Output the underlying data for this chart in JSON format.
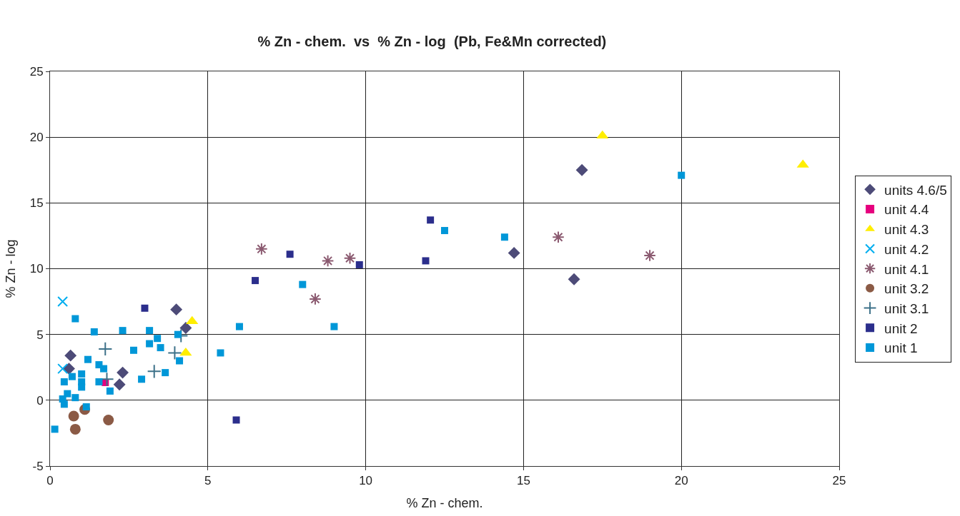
{
  "chart_data": {
    "type": "scatter",
    "title": "% Zn - chem.  vs  % Zn - log  (Pb, Fe&Mn corrected)",
    "xlabel": "% Zn - chem.",
    "ylabel": "% Zn - log",
    "xlim": [
      0,
      25
    ],
    "xticks": [
      0,
      5,
      10,
      15,
      20,
      25
    ],
    "ylim": [
      -5,
      25
    ],
    "yticks": [
      -5,
      0,
      5,
      10,
      15,
      20,
      25
    ],
    "grid": true,
    "legend": "right",
    "series": [
      {
        "name": "units 4.6/5",
        "color": "#4d4b78",
        "marker": "diamond",
        "x": [
          0.65,
          0.6,
          2.2,
          2.3,
          4.0,
          4.3,
          16.85,
          14.7,
          16.6
        ],
        "values": [
          3.4,
          2.4,
          1.2,
          2.1,
          6.9,
          5.5,
          17.5,
          11.2,
          9.2
        ]
      },
      {
        "name": "unit 4.4",
        "color": "#e6007e",
        "marker": "square",
        "x": [
          1.75
        ],
        "values": [
          1.35
        ]
      },
      {
        "name": "unit 4.3",
        "color": "#ffee00",
        "marker": "triangle",
        "x": [
          17.5,
          23.85,
          4.5,
          4.3
        ],
        "values": [
          20.1,
          17.9,
          6.0,
          3.6
        ]
      },
      {
        "name": "unit 4.2",
        "color": "#00aeef",
        "marker": "x",
        "x": [
          0.4,
          0.4
        ],
        "values": [
          7.5,
          2.4
        ]
      },
      {
        "name": "unit 4.1",
        "color": "#8b5a70",
        "x": [
          6.7,
          8.8,
          9.5,
          8.4,
          16.1,
          19.0
        ],
        "values": [
          11.5,
          10.6,
          10.8,
          7.7,
          12.4,
          11.0
        ]
      },
      {
        "name": "unit 3.2",
        "color": "#8b5a45",
        "marker": "circle",
        "x": [
          0.75,
          1.1,
          1.85,
          0.8
        ],
        "values": [
          -1.2,
          -0.7,
          -1.5,
          -2.2
        ]
      },
      {
        "name": "unit 3.1",
        "color": "#3d7189",
        "marker": "cross",
        "x": [
          1.75,
          1.8,
          3.3,
          3.95,
          4.15
        ],
        "values": [
          3.9,
          1.6,
          2.2,
          3.6,
          4.9
        ]
      },
      {
        "name": "unit 2",
        "color": "#2b2e8c",
        "marker": "square",
        "x": [
          3.0,
          7.6,
          6.5,
          9.8,
          5.9,
          12.05,
          11.9
        ],
        "values": [
          7.0,
          11.1,
          9.1,
          10.3,
          -1.5,
          13.7,
          10.6
        ]
      },
      {
        "name": "unit 1",
        "color": "#0097d8",
        "marker": "square",
        "x": [
          0.8,
          1.4,
          2.3,
          3.15,
          3.4,
          3.15,
          3.5,
          4.05,
          2.65,
          4.1,
          3.65,
          2.9,
          1.2,
          1.55,
          1.7,
          1.0,
          0.7,
          1.0,
          0.45,
          1.55,
          1.0,
          1.9,
          0.55,
          0.8,
          0.4,
          0.45,
          1.15,
          0.15,
          6.0,
          9.0,
          5.4,
          8.0,
          12.5,
          14.4,
          20.0
        ],
        "values": [
          6.2,
          5.2,
          5.3,
          5.3,
          4.7,
          4.3,
          4.0,
          5.0,
          3.8,
          3.0,
          2.1,
          1.6,
          3.1,
          2.7,
          2.4,
          2.0,
          1.8,
          1.4,
          1.4,
          1.4,
          1.0,
          0.7,
          0.5,
          0.2,
          0.1,
          -0.3,
          -0.5,
          -2.2,
          5.6,
          5.6,
          3.6,
          8.8,
          12.9,
          12.4,
          17.1
        ]
      }
    ]
  }
}
